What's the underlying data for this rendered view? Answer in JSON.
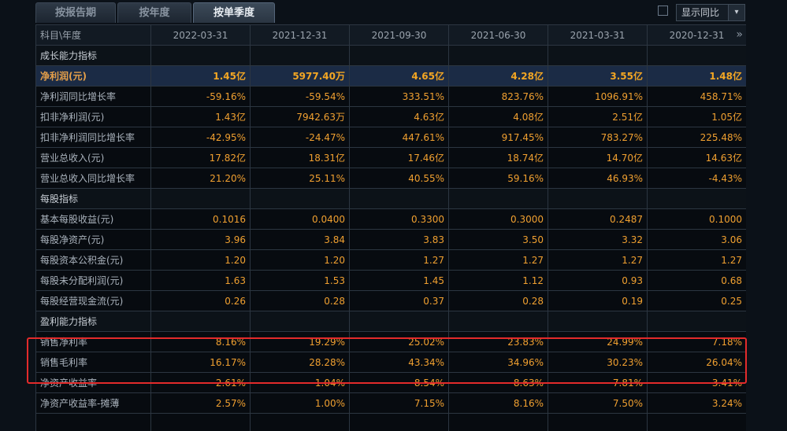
{
  "tabs": [
    {
      "label": "按报告期",
      "active": false
    },
    {
      "label": "按年度",
      "active": false
    },
    {
      "label": "按单季度",
      "active": true
    }
  ],
  "compare": {
    "label": "显示同比",
    "arrow": "▾",
    "checked": false
  },
  "table": {
    "header": [
      "科目\\年度",
      "2022-03-31",
      "2021-12-31",
      "2021-09-30",
      "2021-06-30",
      "2021-03-31",
      "2020-12-31"
    ],
    "more_icon": "»",
    "rows": [
      {
        "kind": "section",
        "label": "成长能力指标",
        "values": [
          "",
          "",
          "",
          "",
          "",
          ""
        ]
      },
      {
        "kind": "highlight",
        "label": "净利润(元)",
        "values": [
          "1.45亿",
          "5977.40万",
          "4.65亿",
          "4.28亿",
          "3.55亿",
          "1.48亿"
        ]
      },
      {
        "kind": "data",
        "label": "净利润同比增长率",
        "values": [
          "-59.16%",
          "-59.54%",
          "333.51%",
          "823.76%",
          "1096.91%",
          "458.71%"
        ]
      },
      {
        "kind": "data",
        "label": "扣非净利润(元)",
        "values": [
          "1.43亿",
          "7942.63万",
          "4.63亿",
          "4.08亿",
          "2.51亿",
          "1.05亿"
        ]
      },
      {
        "kind": "data",
        "label": "扣非净利润同比增长率",
        "values": [
          "-42.95%",
          "-24.47%",
          "447.61%",
          "917.45%",
          "783.27%",
          "225.48%"
        ]
      },
      {
        "kind": "data",
        "label": "营业总收入(元)",
        "values": [
          "17.82亿",
          "18.31亿",
          "17.46亿",
          "18.74亿",
          "14.70亿",
          "14.63亿"
        ]
      },
      {
        "kind": "data",
        "label": "营业总收入同比增长率",
        "values": [
          "21.20%",
          "25.11%",
          "40.55%",
          "59.16%",
          "46.93%",
          "-4.43%"
        ]
      },
      {
        "kind": "section",
        "label": "每股指标",
        "values": [
          "",
          "",
          "",
          "",
          "",
          ""
        ]
      },
      {
        "kind": "data",
        "label": "基本每股收益(元)",
        "values": [
          "0.1016",
          "0.0400",
          "0.3300",
          "0.3000",
          "0.2487",
          "0.1000"
        ]
      },
      {
        "kind": "data",
        "label": "每股净资产(元)",
        "values": [
          "3.96",
          "3.84",
          "3.83",
          "3.50",
          "3.32",
          "3.06"
        ]
      },
      {
        "kind": "data",
        "label": "每股资本公积金(元)",
        "values": [
          "1.20",
          "1.20",
          "1.27",
          "1.27",
          "1.27",
          "1.27"
        ]
      },
      {
        "kind": "data",
        "label": "每股未分配利润(元)",
        "values": [
          "1.63",
          "1.53",
          "1.45",
          "1.12",
          "0.93",
          "0.68"
        ]
      },
      {
        "kind": "data",
        "label": "每股经营现金流(元)",
        "values": [
          "0.26",
          "0.28",
          "0.37",
          "0.28",
          "0.19",
          "0.25"
        ]
      },
      {
        "kind": "section",
        "label": "盈利能力指标",
        "values": [
          "",
          "",
          "",
          "",
          "",
          ""
        ]
      },
      {
        "kind": "data",
        "label": "销售净利率",
        "values": [
          "8.16%",
          "19.29%",
          "25.02%",
          "23.83%",
          "24.99%",
          "7.18%"
        ]
      },
      {
        "kind": "data",
        "label": "销售毛利率",
        "values": [
          "16.17%",
          "28.28%",
          "43.34%",
          "34.96%",
          "30.23%",
          "26.04%"
        ]
      },
      {
        "kind": "data",
        "label": "净资产收益率",
        "values": [
          "2.61%",
          "1.04%",
          "8.54%",
          "8.63%",
          "7.81%",
          "3.41%"
        ]
      },
      {
        "kind": "data",
        "label": "净资产收益率-摊薄",
        "values": [
          "2.57%",
          "1.00%",
          "7.15%",
          "8.16%",
          "7.50%",
          "3.24%"
        ]
      },
      {
        "kind": "data",
        "label": "",
        "values": [
          "",
          "",
          "",
          "",
          "",
          ""
        ]
      }
    ]
  },
  "colors": {
    "background": "#0b1118",
    "value_orange": "#f0a030",
    "highlight_row": "#1b2b45",
    "annotation_red": "#e32b2b"
  }
}
